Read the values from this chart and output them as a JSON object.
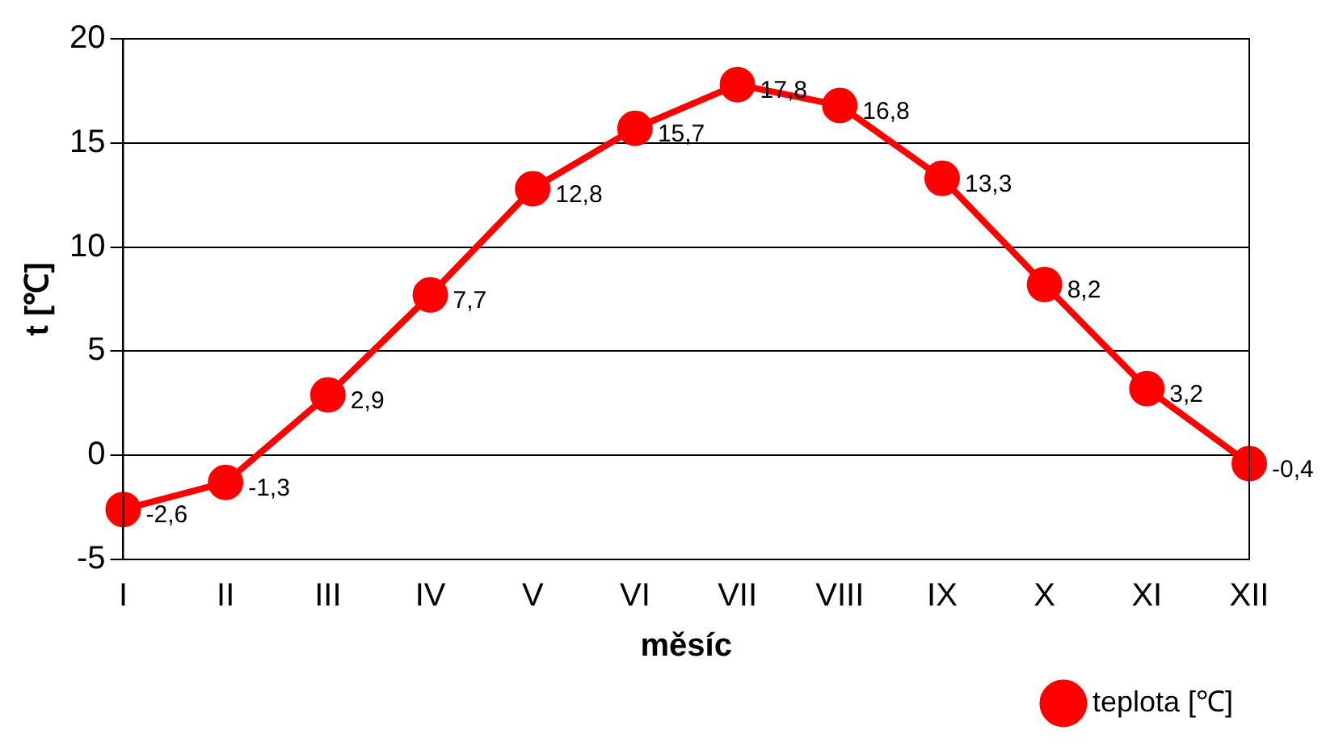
{
  "chart_data": {
    "type": "line",
    "xlabel": "měsíc",
    "ylabel": "t [℃]",
    "categories": [
      "I",
      "II",
      "III",
      "IV",
      "V",
      "VI",
      "VII",
      "VIII",
      "IX",
      "X",
      "XI",
      "XII"
    ],
    "series": [
      {
        "name": "teplota [℃]",
        "color": "#ff0000",
        "values": [
          -2.6,
          -1.3,
          2.9,
          7.7,
          12.8,
          15.7,
          17.8,
          16.8,
          13.3,
          8.2,
          3.2,
          -0.4
        ],
        "value_labels": [
          "-2,6",
          "-1,3",
          "2,9",
          "7,7",
          "12,8",
          "15,7",
          "17,8",
          "16,8",
          "13,3",
          "8,2",
          "3,2",
          "-0,4"
        ]
      }
    ],
    "ylim": [
      -5,
      20
    ],
    "yticks": [
      -5,
      0,
      5,
      10,
      15,
      20
    ],
    "grid": "y",
    "legend": "bottom right",
    "marker": "circle",
    "line_style": "solid"
  }
}
